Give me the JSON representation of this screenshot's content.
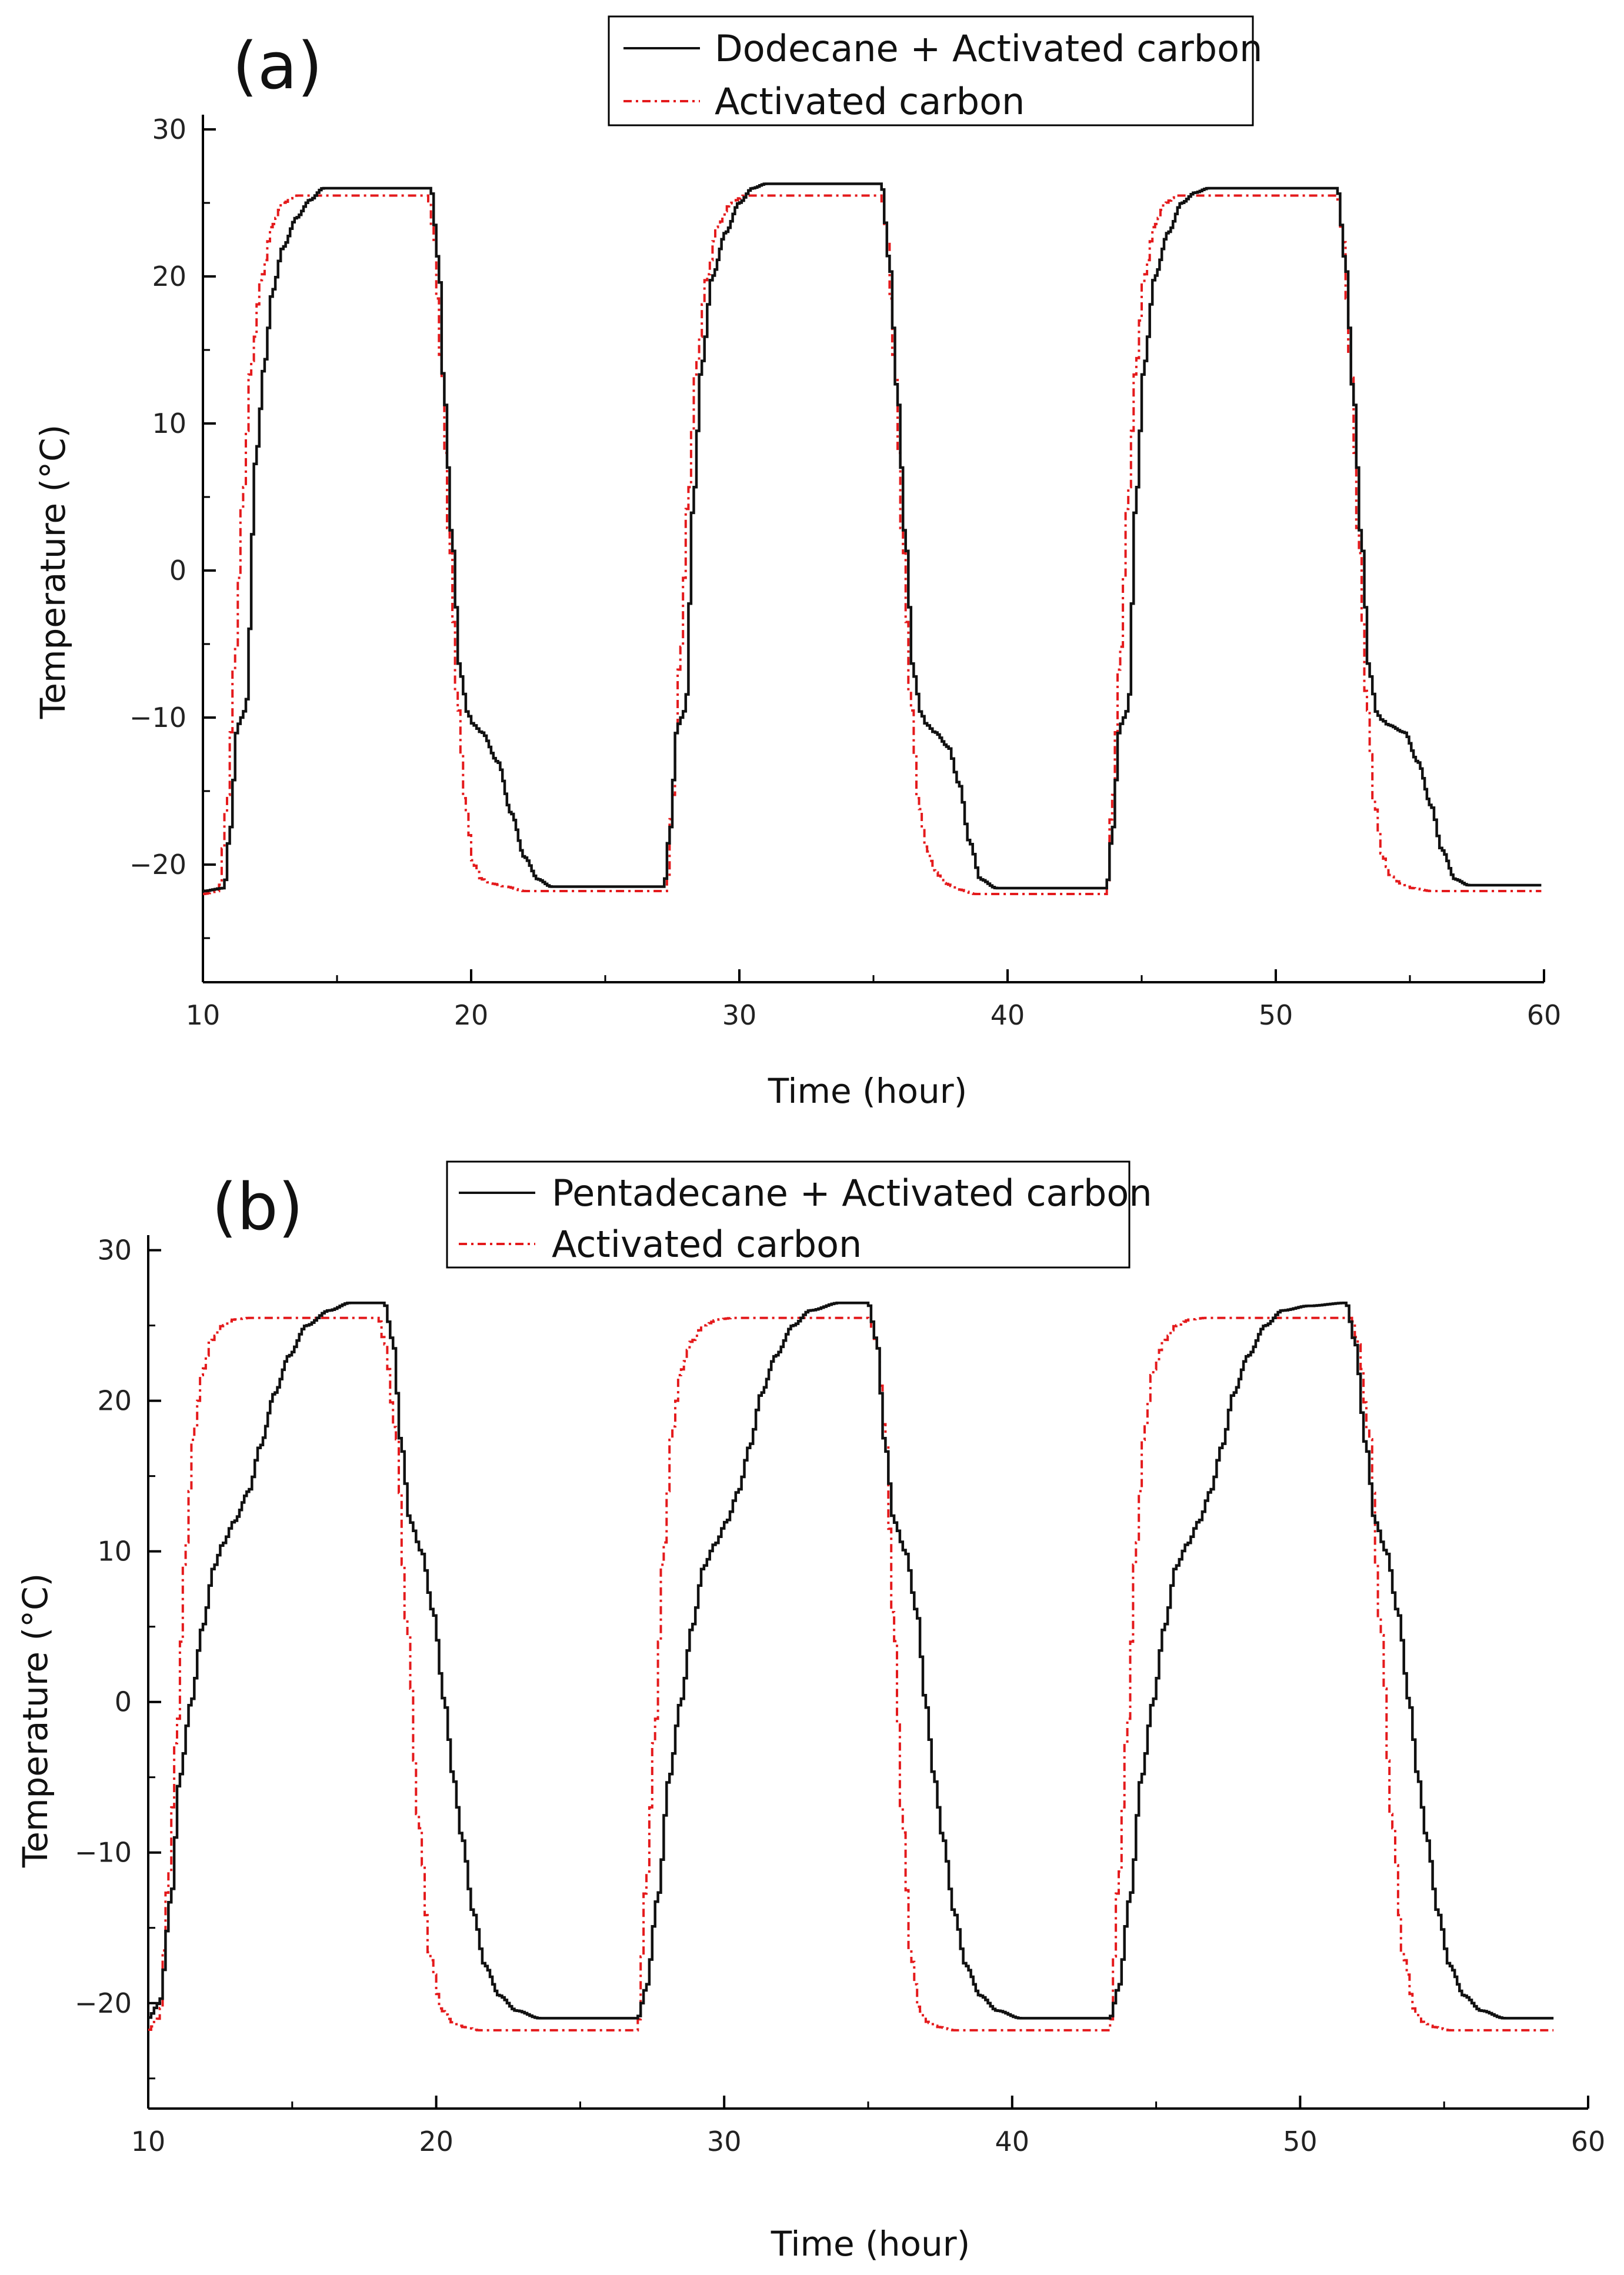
{
  "colors": {
    "series_black": "#111111",
    "series_red": "#e41a1c",
    "axis": "#000000"
  },
  "chart_data": [
    {
      "panel_label": "(a)",
      "type": "line",
      "xlabel": "Time (hour)",
      "ylabel": "Temperature (°C)",
      "xlim": [
        10,
        60
      ],
      "ylim": [
        -28,
        31
      ],
      "xticks": [
        10,
        20,
        30,
        40,
        50,
        60
      ],
      "yticks": [
        -20,
        -10,
        0,
        10,
        20,
        30
      ],
      "legend_position": "top-right",
      "series": [
        {
          "name": "Dodecane + Activated carbon",
          "style": "solid",
          "x": [
            10,
            10.8,
            11.0,
            11.3,
            11.6,
            12.0,
            12.3,
            12.6,
            13.0,
            13.5,
            14.0,
            14.5,
            18.5,
            18.8,
            19.0,
            19.3,
            19.6,
            19.9,
            20.1,
            20.4,
            21.0,
            21.5,
            22.0,
            22.5,
            23.0,
            25.0,
            27.2,
            27.4,
            27.7,
            28.0,
            28.3,
            28.6,
            29.0,
            29.5,
            30.0,
            30.5,
            31.0,
            35.3,
            35.6,
            35.9,
            36.2,
            36.5,
            36.8,
            37.0,
            37.3,
            37.8,
            38.2,
            38.6,
            39.0,
            39.6,
            40.0,
            43.7,
            43.9,
            44.2,
            44.5,
            44.8,
            45.1,
            45.5,
            46.0,
            46.5,
            47.0,
            47.5,
            52.3,
            52.6,
            52.9,
            53.2,
            53.5,
            53.8,
            54.0,
            54.2,
            54.8,
            55.3,
            55.8,
            56.2,
            56.7,
            57.2,
            59.0,
            59.9
          ],
          "values": [
            -21.8,
            -21.6,
            -18,
            -10.5,
            -9.5,
            8,
            14,
            19,
            22,
            24,
            25.2,
            26,
            26,
            21,
            12,
            2,
            -7,
            -9.8,
            -10.5,
            -11,
            -13,
            -16.5,
            -19.5,
            -21,
            -21.5,
            -21.5,
            -21.5,
            -18,
            -10.5,
            -9.5,
            5,
            14,
            20,
            23,
            25,
            26,
            26.3,
            26.3,
            21,
            12,
            2,
            -7,
            -9.8,
            -10.5,
            -11,
            -12,
            -14.5,
            -18.5,
            -21,
            -21.6,
            -21.6,
            -21.6,
            -18,
            -10.5,
            -9.5,
            5,
            14,
            20,
            23,
            25,
            25.7,
            26,
            26,
            21,
            12,
            2,
            -7,
            -9.8,
            -10.2,
            -10.5,
            -11,
            -13,
            -16,
            -19,
            -21,
            -21.4,
            -21.4,
            -21.4
          ]
        },
        {
          "name": "Activated carbon",
          "style": "dash-dot",
          "x": [
            10,
            10.6,
            10.9,
            11.2,
            11.5,
            11.8,
            12.2,
            12.6,
            13.0,
            13.5,
            18.4,
            18.6,
            18.9,
            19.2,
            19.5,
            19.8,
            20.1,
            20.4,
            20.8,
            21.3,
            22.0,
            27.3,
            27.5,
            27.8,
            28.1,
            28.4,
            28.8,
            29.2,
            29.7,
            30.2,
            35.3,
            35.5,
            35.8,
            36.1,
            36.4,
            36.7,
            37.0,
            37.3,
            37.7,
            38.2,
            38.8,
            43.7,
            43.9,
            44.2,
            44.5,
            44.8,
            45.1,
            45.5,
            45.9,
            46.3,
            52.3,
            52.5,
            52.8,
            53.1,
            53.4,
            53.7,
            54.0,
            54.3,
            54.7,
            55.1,
            55.8,
            59.9
          ],
          "values": [
            -22,
            -21.8,
            -16,
            -6,
            5,
            14,
            20,
            23.5,
            25,
            25.5,
            25.5,
            23,
            14,
            2,
            -9,
            -16,
            -20,
            -21,
            -21.3,
            -21.5,
            -21.8,
            -21.8,
            -16,
            -6,
            5,
            14,
            20,
            23.5,
            25,
            25.5,
            25.5,
            23,
            14,
            2,
            -9,
            -16,
            -19,
            -20.5,
            -21.3,
            -21.7,
            -22,
            -22,
            -16,
            -6,
            5,
            14,
            20,
            23.5,
            25,
            25.5,
            25.5,
            23,
            14,
            2,
            -9,
            -16,
            -19.5,
            -20.8,
            -21.3,
            -21.6,
            -21.8,
            -21.8
          ]
        }
      ]
    },
    {
      "panel_label": "(b)",
      "type": "line",
      "xlabel": "Time (hour)",
      "ylabel": "Temperature (°C)",
      "xlim": [
        10,
        60
      ],
      "ylim": [
        -27,
        31
      ],
      "xticks": [
        10,
        20,
        30,
        40,
        50,
        60
      ],
      "yticks": [
        -20,
        -10,
        0,
        10,
        20,
        30
      ],
      "legend_position": "top-center",
      "series": [
        {
          "name": "Pentadecane + Activated carbon",
          "style": "solid",
          "x": [
            10,
            10.4,
            10.8,
            11.1,
            11.5,
            11.9,
            12.3,
            12.6,
            13.0,
            13.5,
            13.9,
            14.4,
            14.9,
            15.5,
            16.3,
            17.0,
            18.2,
            18.5,
            18.8,
            19.1,
            19.5,
            19.9,
            20.3,
            20.6,
            20.9,
            21.3,
            21.7,
            22.2,
            22.8,
            23.6,
            27.0,
            27.3,
            27.7,
            28.1,
            28.5,
            28.9,
            29.3,
            29.7,
            30.1,
            30.5,
            30.9,
            31.3,
            31.8,
            32.4,
            33.0,
            34.0,
            35.0,
            35.3,
            35.6,
            35.9,
            36.3,
            36.7,
            37.0,
            37.3,
            37.6,
            38.0,
            38.4,
            38.9,
            39.5,
            40.3,
            43.4,
            43.7,
            44.1,
            44.5,
            44.9,
            45.3,
            45.7,
            46.1,
            46.5,
            46.9,
            47.3,
            47.7,
            48.2,
            48.8,
            49.4,
            50.3,
            51.6,
            51.9,
            52.3,
            52.6,
            53.0,
            53.4,
            53.8,
            54.1,
            54.4,
            54.8,
            55.2,
            55.7,
            56.3,
            57.1,
            58.8
          ],
          "values": [
            -21,
            -20,
            -13,
            -5,
            0,
            5,
            9,
            10.5,
            12,
            14,
            17,
            20.5,
            23,
            25,
            26,
            26.5,
            26.5,
            24,
            17,
            12,
            10,
            6,
            0,
            -5,
            -9,
            -14,
            -17.5,
            -19.5,
            -20.5,
            -21,
            -21,
            -19,
            -13,
            -5,
            0,
            5,
            9,
            10.5,
            12,
            14,
            17,
            20.5,
            23,
            25,
            26,
            26.5,
            26.5,
            24,
            17,
            12,
            10,
            6,
            0,
            -5,
            -9,
            -14,
            -17.5,
            -19.5,
            -20.5,
            -21,
            -21,
            -19,
            -13,
            -5,
            0,
            5,
            9,
            10.5,
            12,
            14,
            17,
            20.5,
            23,
            25,
            26,
            26.3,
            26.5,
            24,
            17,
            12,
            10,
            6,
            0,
            -5,
            -9,
            -14,
            -17.5,
            -19.5,
            -20.5,
            -21,
            -21
          ]
        },
        {
          "name": "Activated carbon",
          "style": "dash-dot",
          "x": [
            10,
            10.4,
            10.7,
            11.0,
            11.3,
            11.6,
            11.9,
            12.2,
            12.6,
            13.0,
            13.5,
            18.0,
            18.2,
            18.6,
            19.0,
            19.4,
            19.8,
            20.2,
            20.6,
            21.0,
            21.5,
            22.2,
            27.0,
            27.3,
            27.6,
            27.9,
            28.2,
            28.5,
            28.9,
            29.3,
            29.8,
            30.3,
            35.0,
            35.3,
            35.6,
            35.9,
            36.2,
            36.5,
            36.8,
            37.1,
            37.5,
            38.0,
            38.7,
            43.4,
            43.7,
            44.0,
            44.3,
            44.6,
            44.9,
            45.3,
            45.7,
            46.2,
            46.7,
            51.8,
            52.0,
            52.4,
            52.8,
            53.2,
            53.6,
            54.0,
            54.3,
            54.7,
            55.2,
            55.9,
            58.8
          ],
          "values": [
            -21.8,
            -21,
            -12,
            -2,
            10,
            18,
            22,
            24,
            25,
            25.4,
            25.5,
            25.5,
            24,
            18,
            5,
            -8,
            -17,
            -20.5,
            -21.3,
            -21.6,
            -21.8,
            -21.8,
            -21.8,
            -12,
            -2,
            10,
            18,
            22,
            24,
            25,
            25.4,
            25.5,
            25.5,
            24,
            18,
            5,
            -8,
            -17,
            -20.5,
            -21.3,
            -21.6,
            -21.8,
            -21.8,
            -21.8,
            -12,
            -2,
            10,
            18,
            22,
            24,
            25,
            25.4,
            25.5,
            25.5,
            24,
            18,
            5,
            -8,
            -17,
            -20.5,
            -21.3,
            -21.6,
            -21.8,
            -21.8,
            -21.8
          ]
        }
      ]
    }
  ]
}
